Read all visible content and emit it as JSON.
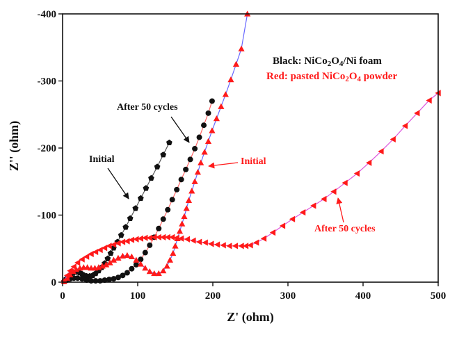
{
  "chart_data": {
    "type": "scatter",
    "xlabel": "Z' (ohm)",
    "ylabel": "Z'' (ohm)",
    "xlim": [
      0,
      500
    ],
    "ylim": [
      0,
      -400
    ],
    "x_ticks": [
      0,
      100,
      200,
      300,
      400,
      500
    ],
    "y_ticks": [
      0,
      -100,
      -200,
      -300,
      -400
    ],
    "x_tick_labels": [
      "0",
      "100",
      "200",
      "300",
      "400",
      "500"
    ],
    "y_tick_labels": [
      "0",
      "-100",
      "-200",
      "-300",
      "-400"
    ],
    "legend": {
      "black": {
        "prefix": "Black: NiCo",
        "sub1": "2",
        "mid": "O",
        "sub2": "4",
        "suffix": "/Ni foam",
        "color": "#111111"
      },
      "red": {
        "prefix": "Red: pasted NiCo",
        "sub1": "2",
        "mid": "O",
        "sub2": "4",
        "suffix": " powder",
        "color": "#ff1a1a"
      }
    },
    "annotations": [
      {
        "id": "black-initial",
        "text": "Initial",
        "color": "#111111"
      },
      {
        "id": "black-after",
        "text": "After 50 cycles",
        "color": "#111111"
      },
      {
        "id": "red-initial",
        "text": "Initial",
        "color": "#ff1a1a"
      },
      {
        "id": "red-after",
        "text": "After 50 cycles",
        "color": "#ff1a1a"
      }
    ],
    "series": [
      {
        "id": "black-initial",
        "marker": "pentagon",
        "color": "#111111",
        "line_color": "#555555",
        "x": [
          2,
          5,
          8,
          11,
          14,
          17,
          20,
          23,
          26,
          29,
          32,
          36,
          40,
          44,
          48,
          52,
          56,
          60,
          64,
          68,
          73,
          78,
          84,
          90,
          97,
          104,
          111,
          118,
          126,
          134,
          142
        ],
        "y": [
          -1,
          -5,
          -9,
          -12,
          -14,
          -15,
          -15,
          -14,
          -12,
          -10,
          -9,
          -9,
          -10,
          -13,
          -17,
          -22,
          -28,
          -35,
          -43,
          -51,
          -60,
          -70,
          -82,
          -95,
          -110,
          -125,
          -140,
          -155,
          -172,
          -190,
          -208
        ]
      },
      {
        "id": "black-after",
        "marker": "circle",
        "color": "#111111",
        "line_color": "#ff6666",
        "x": [
          2,
          6,
          10,
          15,
          20,
          26,
          32,
          38,
          44,
          50,
          56,
          62,
          68,
          74,
          80,
          86,
          92,
          98,
          104,
          110,
          116,
          122,
          128,
          134,
          140,
          146,
          152,
          158,
          164,
          170,
          176,
          182,
          188,
          194,
          199
        ],
        "y": [
          -1,
          -3,
          -5,
          -6,
          -6,
          -5,
          -3,
          -2,
          -2,
          -2,
          -3,
          -4,
          -5,
          -7,
          -10,
          -14,
          -20,
          -26,
          -34,
          -44,
          -55,
          -67,
          -80,
          -94,
          -108,
          -123,
          -138,
          -153,
          -168,
          -183,
          -199,
          -216,
          -234,
          -252,
          -270
        ]
      },
      {
        "id": "red-initial",
        "marker": "triangle-up",
        "color": "#ff1a1a",
        "line_color": "#6666ff",
        "x": [
          2,
          6,
          10,
          14,
          18,
          23,
          28,
          33,
          38,
          43,
          48,
          53,
          58,
          63,
          68,
          74,
          80,
          86,
          92,
          98,
          104,
          110,
          116,
          122,
          128,
          134,
          139,
          143,
          147,
          150,
          153,
          156,
          159,
          162,
          165,
          168,
          172,
          176,
          180,
          184,
          189,
          194,
          199,
          205,
          211,
          217,
          224,
          231,
          238,
          246
        ],
        "y": [
          -1,
          -6,
          -11,
          -16,
          -19,
          -21,
          -22,
          -22,
          -21,
          -21,
          -22,
          -24,
          -26,
          -29,
          -33,
          -36,
          -39,
          -40,
          -38,
          -33,
          -27,
          -21,
          -16,
          -13,
          -13,
          -17,
          -24,
          -33,
          -43,
          -54,
          -65,
          -76,
          -87,
          -98,
          -110,
          -122,
          -136,
          -150,
          -164,
          -178,
          -194,
          -210,
          -226,
          -244,
          -262,
          -280,
          -302,
          -325,
          -348,
          -400
        ]
      },
      {
        "id": "red-after",
        "marker": "triangle-left",
        "color": "#ff1a1a",
        "line_color": "#dd55dd",
        "x": [
          2,
          6,
          10,
          15,
          20,
          26,
          32,
          38,
          44,
          50,
          56,
          62,
          68,
          74,
          80,
          86,
          92,
          98,
          104,
          110,
          116,
          122,
          128,
          134,
          140,
          146,
          152,
          158,
          166,
          174,
          182,
          190,
          198,
          206,
          214,
          222,
          230,
          238,
          244,
          250,
          258,
          268,
          280,
          293,
          306,
          320,
          334,
          348,
          361,
          376,
          392,
          408,
          424,
          440,
          456,
          472,
          488,
          500
        ],
        "y": [
          -2,
          -10,
          -17,
          -23,
          -29,
          -34,
          -38,
          -42,
          -45,
          -48,
          -51,
          -54,
          -56,
          -58,
          -60,
          -61,
          -63,
          -64,
          -65,
          -66,
          -66,
          -67,
          -67,
          -67,
          -67,
          -67,
          -66,
          -65,
          -64,
          -62,
          -60,
          -59,
          -57,
          -56,
          -55,
          -54,
          -54,
          -54,
          -54,
          -55,
          -59,
          -65,
          -74,
          -84,
          -94,
          -104,
          -114,
          -124,
          -135,
          -148,
          -162,
          -178,
          -195,
          -213,
          -233,
          -252,
          -271,
          -282
        ]
      }
    ]
  }
}
